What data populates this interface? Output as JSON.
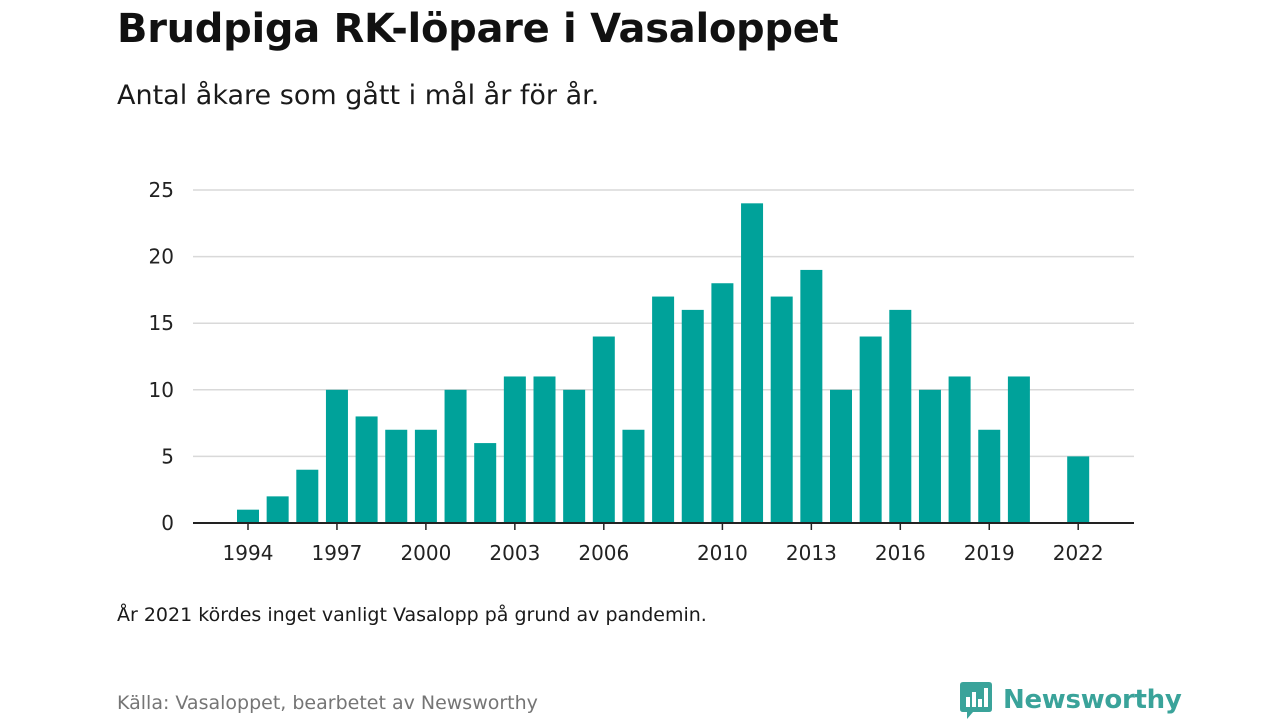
{
  "header": {
    "title": "Brudpiga RK-löpare i Vasaloppet",
    "subtitle": "Antal åkare som gått i mål år för år."
  },
  "footer": {
    "note": "År 2021 kördes inget vanligt Vasalopp på grund av pandemin.",
    "source": "Källa: Vasaloppet, bearbetet av Newsworthy",
    "brand": "Newsworthy",
    "brand_icon": "newsworthy-logo-icon"
  },
  "colors": {
    "bar": "#00a29a",
    "brand": "#3aa39a",
    "grid": "#d9d9d9",
    "axis": "#222222"
  },
  "chart_data": {
    "type": "bar",
    "title": "Brudpiga RK-löpare i Vasaloppet",
    "subtitle": "Antal åkare som gått i mål år för år.",
    "xlabel": "",
    "ylabel": "",
    "ylim": [
      0,
      25
    ],
    "yticks": [
      0,
      5,
      10,
      15,
      20,
      25
    ],
    "xticks": [
      1994,
      1997,
      2000,
      2003,
      2006,
      2010,
      2013,
      2016,
      2019,
      2022
    ],
    "grid": true,
    "legend": "none",
    "categories": [
      1994,
      1995,
      1996,
      1997,
      1998,
      1999,
      2000,
      2001,
      2002,
      2003,
      2004,
      2005,
      2006,
      2007,
      2008,
      2009,
      2010,
      2011,
      2012,
      2013,
      2014,
      2015,
      2016,
      2017,
      2018,
      2019,
      2020,
      2021,
      2022
    ],
    "values": [
      1,
      2,
      4,
      10,
      8,
      7,
      7,
      10,
      6,
      11,
      11,
      10,
      14,
      7,
      17,
      16,
      18,
      24,
      17,
      19,
      10,
      14,
      16,
      10,
      11,
      7,
      11,
      0,
      5
    ]
  }
}
